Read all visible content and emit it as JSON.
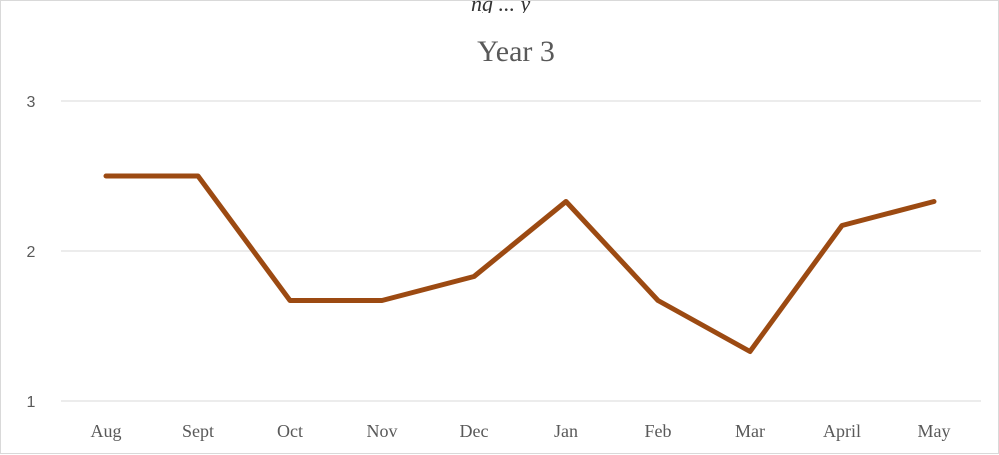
{
  "chart_data": {
    "type": "line",
    "title": "Year 3",
    "categories": [
      "Aug",
      "Sept",
      "Oct",
      "Nov",
      "Dec",
      "Jan",
      "Feb",
      "Mar",
      "April",
      "May"
    ],
    "series": [
      {
        "values": [
          2.5,
          2.5,
          1.67,
          1.67,
          1.83,
          2.33,
          1.67,
          1.33,
          2.17,
          2.33
        ]
      }
    ],
    "ylim": [
      1,
      3
    ],
    "yticks": [
      "1",
      "2",
      "3"
    ],
    "grid": true,
    "legend": "none",
    "colors": {
      "line": "#9C4A12",
      "grid": "#d9d9d9",
      "text": "#595959"
    }
  },
  "cropped_header_fragment": "ng ... y"
}
